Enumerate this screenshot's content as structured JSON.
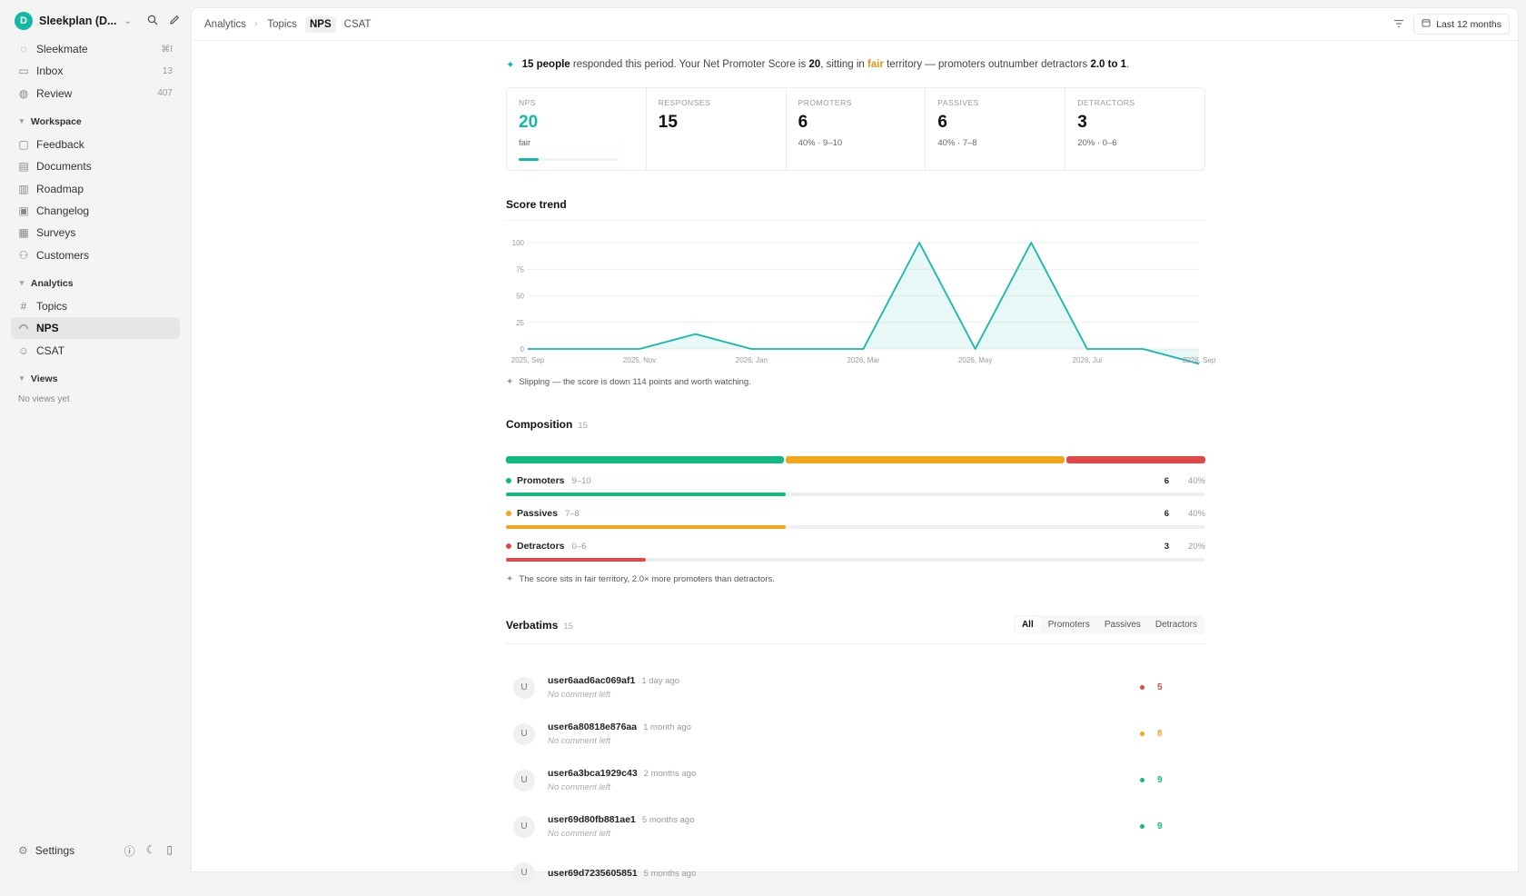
{
  "sidebar": {
    "workspace_initial": "D",
    "workspace_name": "Sleekplan (D...",
    "top_items": [
      {
        "label": "Sleekmate",
        "count": "⌘I"
      },
      {
        "label": "Inbox",
        "count": "13"
      },
      {
        "label": "Review",
        "count": "407"
      }
    ],
    "workspace_label": "Workspace",
    "workspace_items": [
      {
        "label": "Feedback"
      },
      {
        "label": "Documents"
      },
      {
        "label": "Roadmap"
      },
      {
        "label": "Changelog"
      },
      {
        "label": "Surveys"
      },
      {
        "label": "Customers"
      }
    ],
    "analytics_label": "Analytics",
    "analytics_items": [
      {
        "label": "Topics"
      },
      {
        "label": "NPS"
      },
      {
        "label": "CSAT"
      }
    ],
    "views_label": "Views",
    "no_views": "No views yet",
    "settings_label": "Settings"
  },
  "topbar": {
    "breadcrumbs": [
      "Analytics",
      "Topics",
      "NPS",
      "CSAT"
    ],
    "range_label": "Last 12 months"
  },
  "summary": {
    "people": "15 people",
    "text1": " responded this period. Your Net Promoter Score is ",
    "score": "20",
    "text2": ", sitting in ",
    "fair": "fair",
    "text3": " territory — promoters outnumber detractors ",
    "ratio": "2.0 to 1",
    "text4": "."
  },
  "kpis": [
    {
      "label": "NPS",
      "value": "20",
      "sub": "fair",
      "bar_fraction": 0.2
    },
    {
      "label": "RESPONSES",
      "value": "15",
      "sub": ""
    },
    {
      "label": "PROMOTERS",
      "value": "6",
      "sub": "40% · 9–10"
    },
    {
      "label": "PASSIVES",
      "value": "6",
      "sub": "40% · 7–8"
    },
    {
      "label": "DETRACTORS",
      "value": "3",
      "sub": "20% · 0–6"
    }
  ],
  "trend": {
    "title": "Score trend",
    "insight": "Slipping — the score is down 114 points and worth watching."
  },
  "chart_data": {
    "type": "area",
    "title": "Score trend",
    "x": [
      "2025, Sep",
      "2025, Oct",
      "2025, Nov",
      "2025, Dec",
      "2026, Jan",
      "2026, Feb",
      "2026, Mar",
      "2026, Apr",
      "2026, May",
      "2026, Jun",
      "2026, Jul",
      "2026, Aug",
      "2026, Sep"
    ],
    "x_tick_labels": [
      "2025, Sep",
      "2025, Nov",
      "2026, Jan",
      "2026, Mar",
      "2026, May",
      "2026, Jul",
      "2026, Sep"
    ],
    "values": [
      0,
      0,
      0,
      14,
      0,
      0,
      0,
      100,
      0,
      100,
      0,
      0,
      -14
    ],
    "y_ticks": [
      0,
      25,
      50,
      75,
      100
    ],
    "ylim": [
      -14,
      100
    ],
    "grid": true,
    "color": "#14b8a6"
  },
  "composition": {
    "title": "Composition",
    "count": "15",
    "rows": [
      {
        "name": "Promoters",
        "range": "9–10",
        "count": "6",
        "pct": "40%",
        "fraction": 0.4,
        "color": "#10b981"
      },
      {
        "name": "Passives",
        "range": "7–8",
        "count": "6",
        "pct": "40%",
        "fraction": 0.4,
        "color": "#f0a51c"
      },
      {
        "name": "Detractors",
        "range": "0–6",
        "count": "3",
        "pct": "20%",
        "fraction": 0.2,
        "color": "#e04848"
      }
    ],
    "insight": "The score sits in fair territory, 2.0× more promoters than detractors."
  },
  "verbatims": {
    "title": "Verbatims",
    "count": "15",
    "filters": [
      "All",
      "Promoters",
      "Passives",
      "Detractors"
    ],
    "rows": [
      {
        "initial": "U",
        "user": "user6aad6ac069af1",
        "time": "1 day ago",
        "comment": "No comment left",
        "score": "5",
        "color": "#e04848"
      },
      {
        "initial": "U",
        "user": "user6a80818e876aa",
        "time": "1 month ago",
        "comment": "No comment left",
        "score": "8",
        "color": "#f0a51c"
      },
      {
        "initial": "U",
        "user": "user6a3bca1929c43",
        "time": "2 months ago",
        "comment": "No comment left",
        "score": "9",
        "color": "#10b981"
      },
      {
        "initial": "U",
        "user": "user69d80fb881ae1",
        "time": "5 months ago",
        "comment": "No comment left",
        "score": "9",
        "color": "#10b981"
      },
      {
        "initial": "U",
        "user": "user69d7235605851",
        "time": "5 months ago",
        "comment": "",
        "score": "",
        "color": "#10b981"
      }
    ]
  }
}
